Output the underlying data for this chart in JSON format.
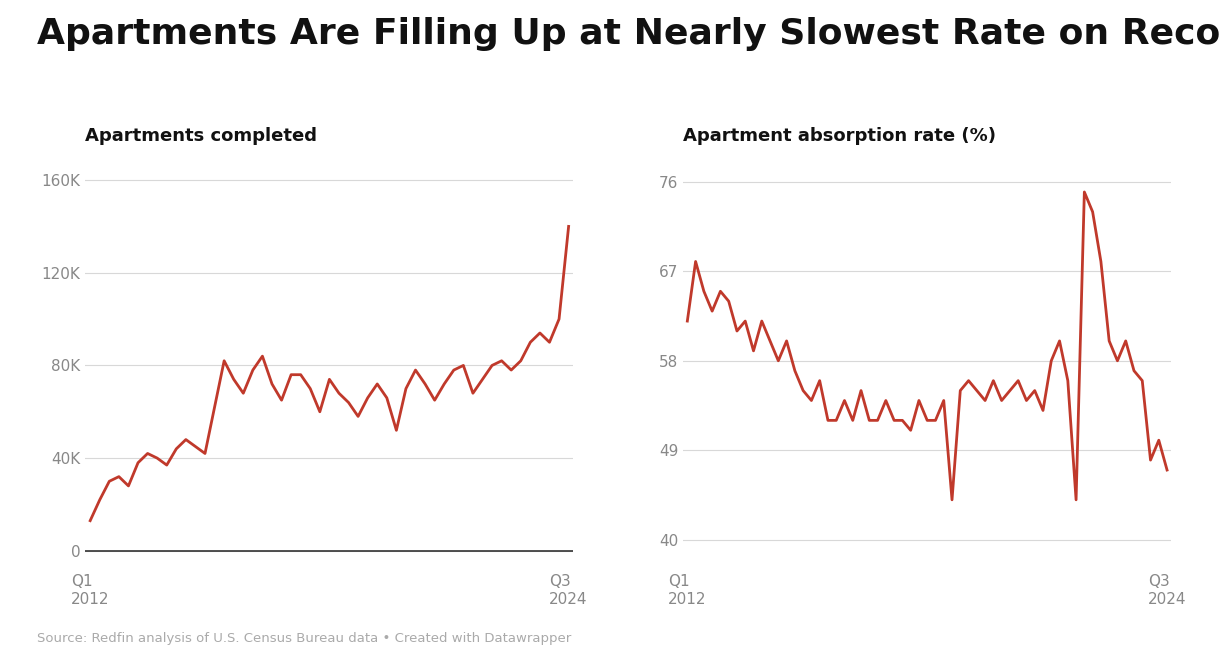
{
  "title": "Apartments Are Filling Up at Nearly Slowest Rate on Record",
  "title_fontsize": 26,
  "source_text": "Source: Redfin analysis of U.S. Census Bureau data • Created with Datawrapper",
  "left_chart": {
    "title": "Apartments completed",
    "yticks": [
      0,
      40000,
      80000,
      120000,
      160000
    ],
    "ytick_labels": [
      "0",
      "40K",
      "80K",
      "120K",
      "160K"
    ],
    "ylim": [
      -8000,
      172000
    ],
    "line_color": "#c0392b"
  },
  "right_chart": {
    "title": "Apartment absorption rate (%)",
    "yticks": [
      40,
      49,
      58,
      67,
      76
    ],
    "ytick_labels": [
      "40",
      "49",
      "58",
      "67",
      "76"
    ],
    "ylim": [
      37,
      79
    ],
    "line_color": "#c0392b"
  },
  "left_y": [
    13000,
    22000,
    30000,
    32000,
    28000,
    38000,
    42000,
    40000,
    37000,
    44000,
    48000,
    45000,
    42000,
    62000,
    82000,
    74000,
    68000,
    78000,
    84000,
    72000,
    65000,
    76000,
    76000,
    70000,
    60000,
    74000,
    68000,
    64000,
    58000,
    66000,
    72000,
    66000,
    52000,
    70000,
    78000,
    72000,
    65000,
    72000,
    78000,
    80000,
    68000,
    74000,
    80000,
    82000,
    78000,
    82000,
    90000,
    94000,
    90000,
    100000,
    140000
  ],
  "right_y": [
    62,
    68,
    65,
    63,
    65,
    64,
    61,
    62,
    59,
    62,
    60,
    58,
    60,
    57,
    55,
    54,
    56,
    52,
    52,
    54,
    52,
    55,
    52,
    52,
    54,
    52,
    52,
    51,
    54,
    52,
    52,
    54,
    44,
    55,
    56,
    55,
    54,
    56,
    54,
    55,
    56,
    54,
    55,
    53,
    58,
    60,
    56,
    44,
    75,
    73,
    68,
    60,
    58,
    60,
    57,
    56,
    48,
    50,
    47
  ],
  "background_color": "#ffffff",
  "line_width": 2.0,
  "grid_color": "#d8d8d8",
  "tick_color": "#888888",
  "xlabel_start": "Q1\n2012",
  "xlabel_end": "Q3\n2024"
}
